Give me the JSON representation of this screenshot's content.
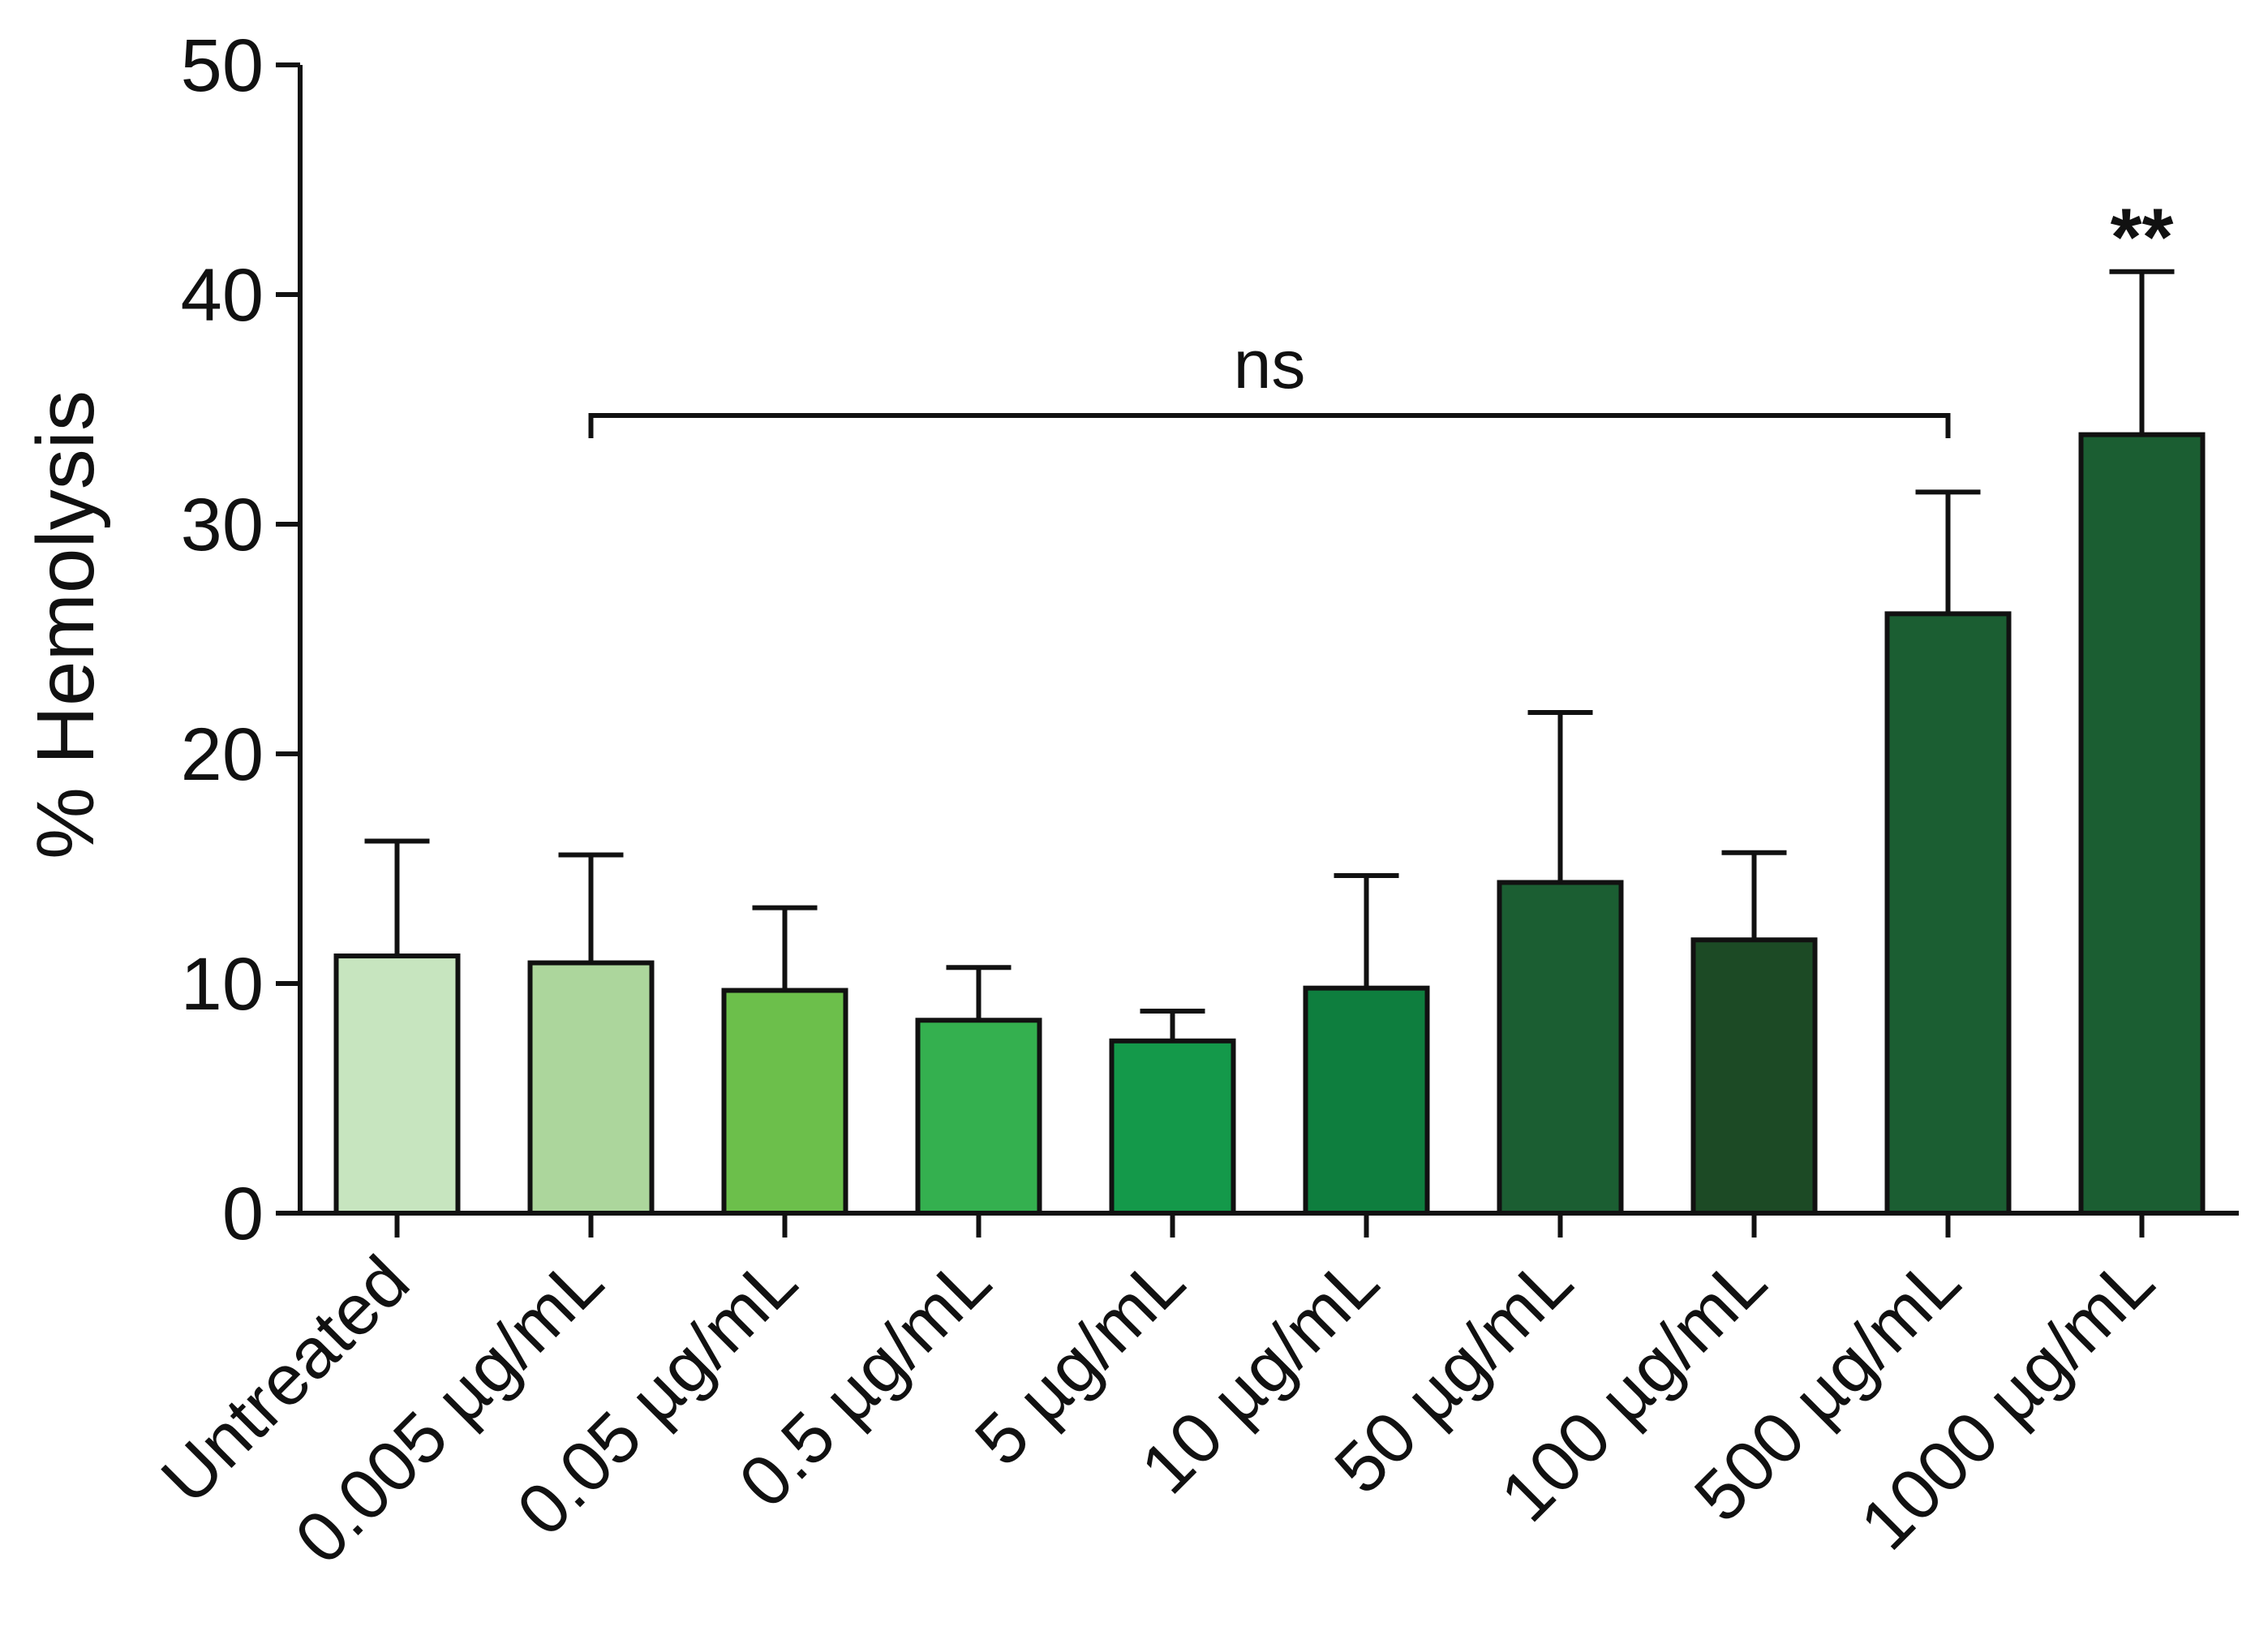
{
  "chart_data": {
    "type": "bar",
    "title": "",
    "xlabel": "",
    "ylabel": "% Hemolysis",
    "ylim": [
      0,
      50
    ],
    "yticks": [
      0,
      10,
      20,
      30,
      40,
      50
    ],
    "grid": false,
    "legend": "none",
    "categories": [
      "Untreated",
      "0.005 µg/mL",
      "0.05 µg/mL",
      "0.5 µg/mL",
      "5 µg/mL",
      "10 µg/mL",
      "50 µg/mL",
      "100 µg/mL",
      "500 µg/mL",
      "1000 µg/mL"
    ],
    "values": [
      11.2,
      10.9,
      9.7,
      8.4,
      7.5,
      9.8,
      14.4,
      11.9,
      26.1,
      33.9
    ],
    "errors": [
      5.0,
      4.7,
      3.6,
      2.3,
      1.3,
      4.9,
      7.4,
      3.8,
      5.3,
      7.1
    ],
    "colors": [
      "#c7e5bf",
      "#acd69c",
      "#6cbf4b",
      "#34b04f",
      "#14994a",
      "#0e7e3e",
      "#1b5e32",
      "#1c4a25",
      "#1b5e32",
      "#1b5e32"
    ],
    "annotations": {
      "bracket": {
        "label": "ns",
        "from_category": 1,
        "to_category": 8
      },
      "significance": {
        "label": "**",
        "category": 9
      }
    }
  }
}
